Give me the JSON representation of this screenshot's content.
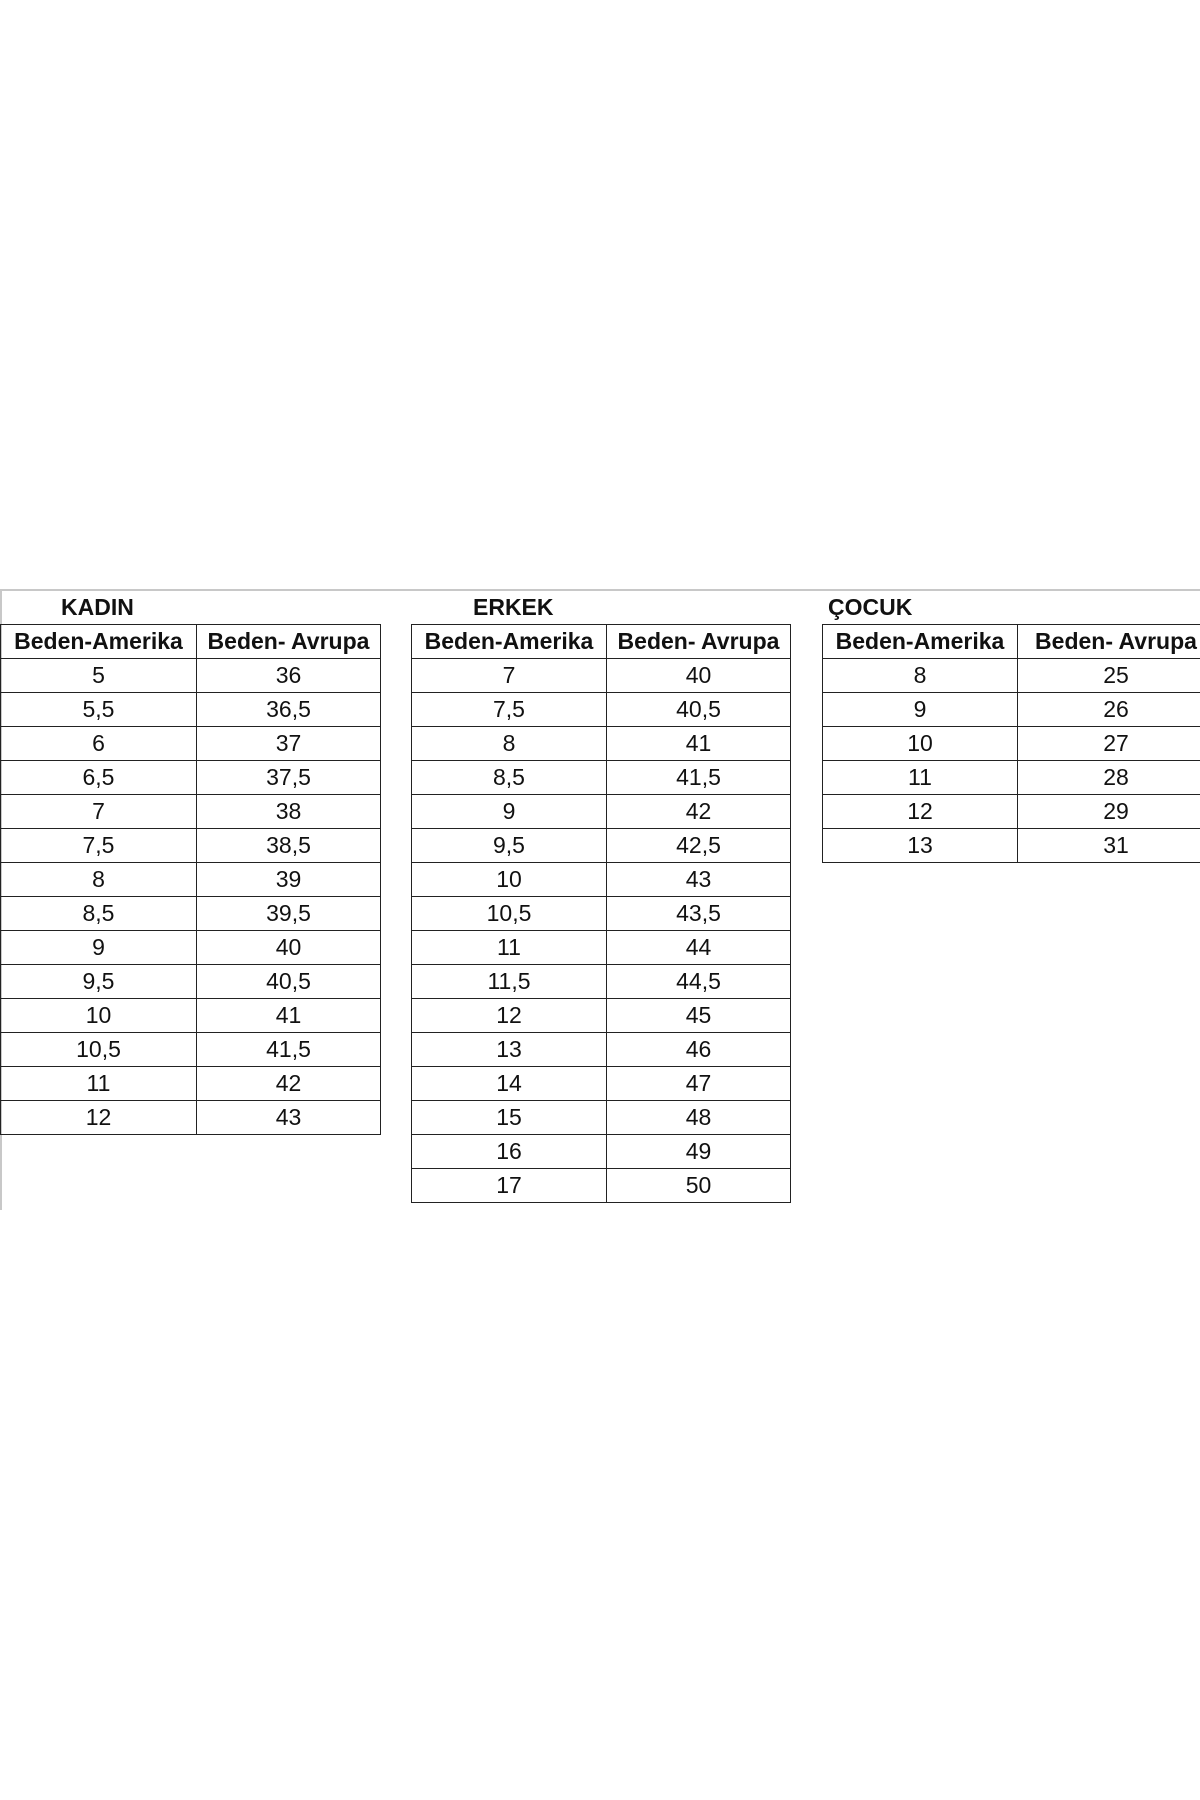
{
  "tables": [
    {
      "title": "KADIN",
      "headers": [
        "Beden-Amerika",
        "Beden- Avrupa"
      ],
      "rows": [
        [
          "5",
          "36"
        ],
        [
          "5,5",
          "36,5"
        ],
        [
          "6",
          "37"
        ],
        [
          "6,5",
          "37,5"
        ],
        [
          "7",
          "38"
        ],
        [
          "7,5",
          "38,5"
        ],
        [
          "8",
          "39"
        ],
        [
          "8,5",
          "39,5"
        ],
        [
          "9",
          "40"
        ],
        [
          "9,5",
          "40,5"
        ],
        [
          "10",
          "41"
        ],
        [
          "10,5",
          "41,5"
        ],
        [
          "11",
          "42"
        ],
        [
          "12",
          "43"
        ]
      ]
    },
    {
      "title": "ERKEK",
      "headers": [
        "Beden-Amerika",
        "Beden- Avrupa"
      ],
      "rows": [
        [
          "7",
          "40"
        ],
        [
          "7,5",
          "40,5"
        ],
        [
          "8",
          "41"
        ],
        [
          "8,5",
          "41,5"
        ],
        [
          "9",
          "42"
        ],
        [
          "9,5",
          "42,5"
        ],
        [
          "10",
          "43"
        ],
        [
          "10,5",
          "43,5"
        ],
        [
          "11",
          "44"
        ],
        [
          "11,5",
          "44,5"
        ],
        [
          "12",
          "45"
        ],
        [
          "13",
          "46"
        ],
        [
          "14",
          "47"
        ],
        [
          "15",
          "48"
        ],
        [
          "16",
          "49"
        ],
        [
          "17",
          "50"
        ]
      ]
    },
    {
      "title": "ÇOCUK",
      "headers": [
        "Beden-Amerika",
        "Beden- Avrupa"
      ],
      "rows": [
        [
          "8",
          "25"
        ],
        [
          "9",
          "26"
        ],
        [
          "10",
          "27"
        ],
        [
          "11",
          "28"
        ],
        [
          "12",
          "29"
        ],
        [
          "13",
          "31"
        ]
      ]
    }
  ]
}
